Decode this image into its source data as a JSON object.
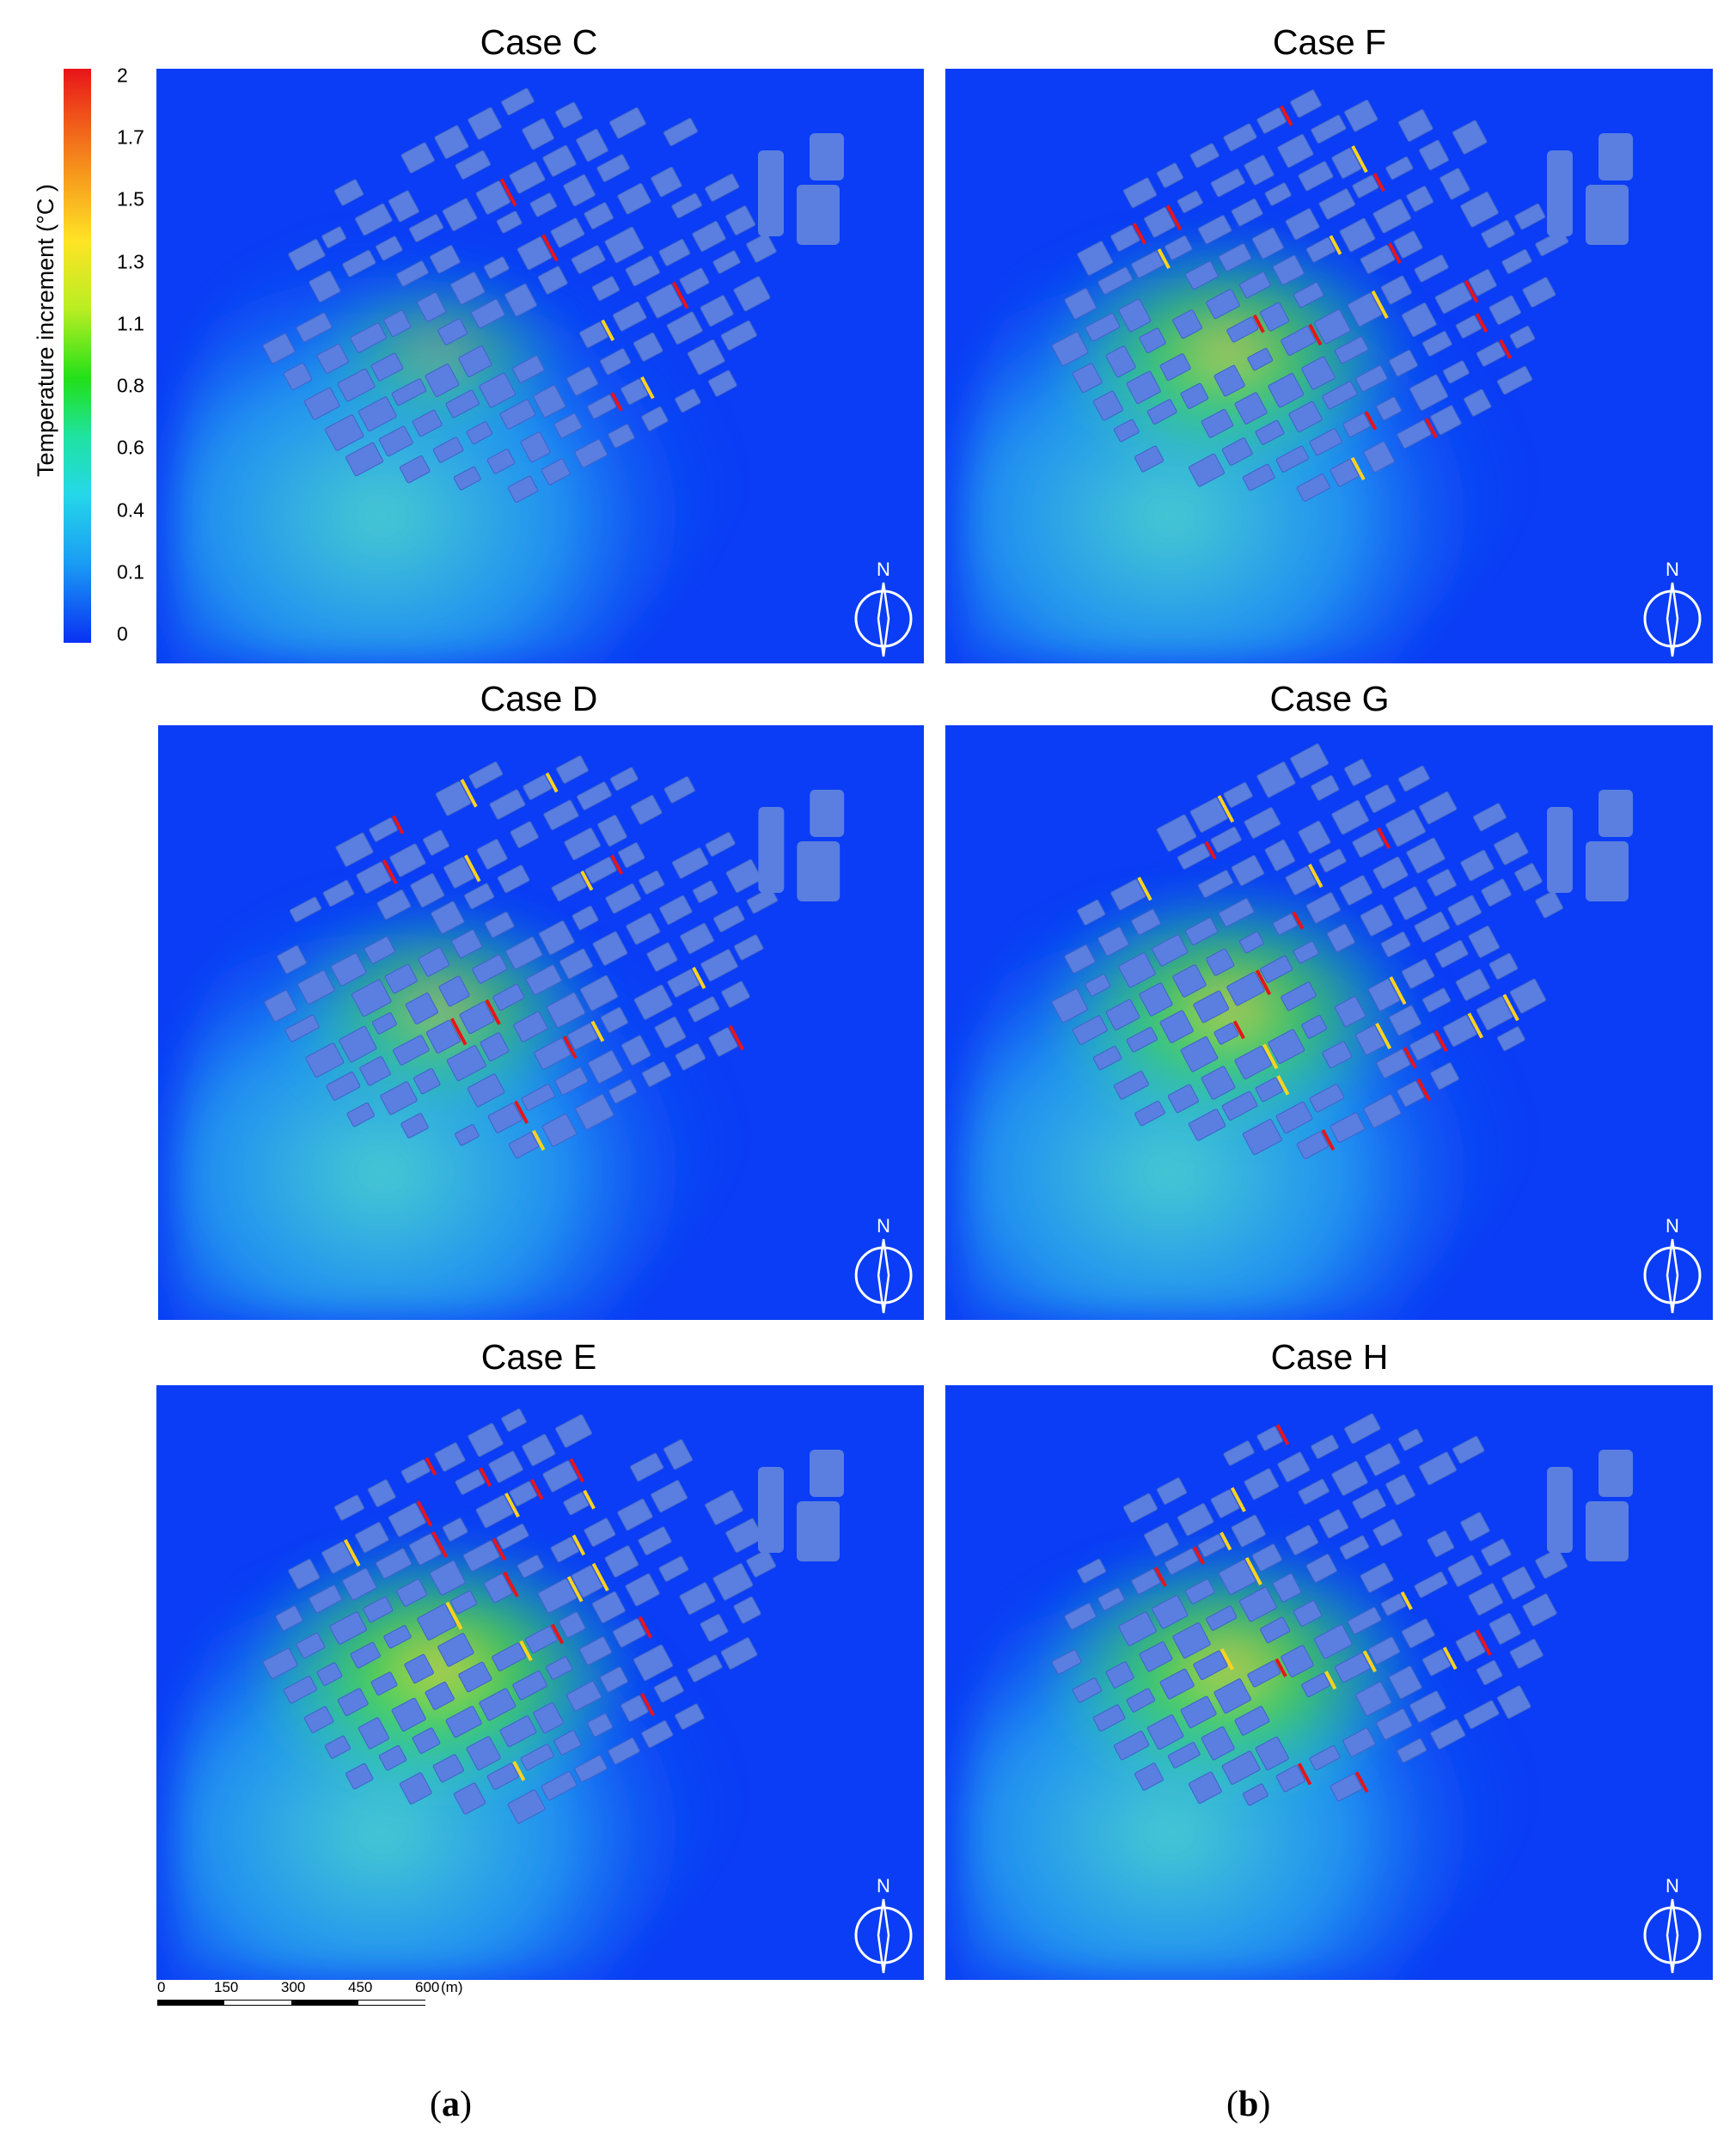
{
  "figure": {
    "colorbar": {
      "label": "Temperature increment (°C )",
      "ticks": [
        "2",
        "1.7",
        "1.5",
        "1.3",
        "1.1",
        "0.8",
        "0.6",
        "0.4",
        "0.1",
        "0"
      ],
      "colors": [
        "#e8141a",
        "#f6961c",
        "#ffe425",
        "#22e018",
        "#25d8e8",
        "#0a30f3"
      ]
    },
    "panels": [
      {
        "title": "Case C",
        "compass": "N"
      },
      {
        "title": "Case F",
        "compass": "N"
      },
      {
        "title": "Case D",
        "compass": "N"
      },
      {
        "title": "Case G",
        "compass": "N"
      },
      {
        "title": "Case E",
        "compass": "N"
      },
      {
        "title": "Case H",
        "compass": "N"
      }
    ],
    "scale_bar": {
      "labels": [
        "0",
        "150",
        "300",
        "450",
        "600"
      ],
      "unit": "(m)"
    },
    "subfigure_labels": [
      "a",
      "b"
    ],
    "background_color": "#0a3df5",
    "building_color": "#5a7fe0"
  }
}
